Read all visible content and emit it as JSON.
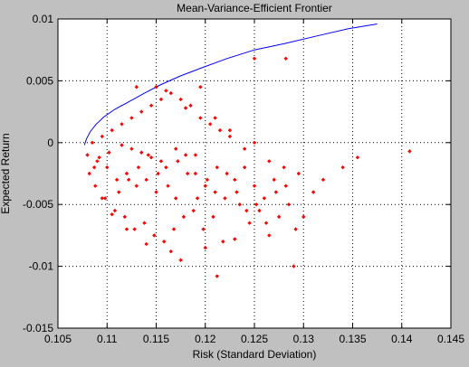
{
  "chart_data": {
    "type": "scatter",
    "title": "Mean-Variance-Efficient Frontier",
    "xlabel": "Risk (Standard Deviation)",
    "ylabel": "Expected Return",
    "xlim": [
      0.105,
      0.145
    ],
    "ylim": [
      -0.015,
      0.01
    ],
    "x_ticks": [
      "0.105",
      "0.11",
      "0.115",
      "0.12",
      "0.125",
      "0.13",
      "0.135",
      "0.14",
      "0.145"
    ],
    "x_tick_values": [
      0.105,
      0.11,
      0.115,
      0.12,
      0.125,
      0.13,
      0.135,
      0.14,
      0.145
    ],
    "y_ticks": [
      "-0.015",
      "-0.01",
      "-0.005",
      "0",
      "0.005",
      "0.01"
    ],
    "y_tick_values": [
      -0.015,
      -0.01,
      -0.005,
      0,
      0.005,
      0.01
    ],
    "grid": true,
    "colors": {
      "frontier": "#0000ff",
      "portfolios": "#ff0000",
      "background": "#c0c0c0",
      "axes_bg": "#ffffff"
    },
    "series": [
      {
        "type": "line",
        "color": "#0000ff",
        "x": [
          0.1077,
          0.1079,
          0.1083,
          0.1089,
          0.1097,
          0.1108,
          0.1122,
          0.1138,
          0.1155,
          0.1175,
          0.1198,
          0.1222,
          0.125,
          0.128,
          0.1312,
          0.1345,
          0.1375
        ],
        "y": [
          -0.0002,
          0.0003,
          0.0009,
          0.0015,
          0.0021,
          0.0027,
          0.0033,
          0.004,
          0.0047,
          0.0054,
          0.0061,
          0.0068,
          0.0075,
          0.008,
          0.0086,
          0.0092,
          0.0096
        ]
      },
      {
        "type": "scatter",
        "color": "#ff0000",
        "x": [
          0.108,
          0.1085,
          0.1082,
          0.109,
          0.1095,
          0.1088,
          0.11,
          0.1105,
          0.1098,
          0.111,
          0.1115,
          0.1108,
          0.112,
          0.1125,
          0.1118,
          0.113,
          0.1135,
          0.1128,
          0.114,
          0.1145,
          0.1138,
          0.115,
          0.1155,
          0.1148,
          0.116,
          0.1165,
          0.1158,
          0.117,
          0.1175,
          0.1168,
          0.118,
          0.1185,
          0.1178,
          0.119,
          0.1195,
          0.1188,
          0.12,
          0.1205,
          0.1198,
          0.121,
          0.1215,
          0.1208,
          0.122,
          0.1225,
          0.1218,
          0.123,
          0.1235,
          0.124,
          0.1245,
          0.125,
          0.1255,
          0.126,
          0.1265,
          0.127,
          0.1275,
          0.128,
          0.1285,
          0.129,
          0.1295,
          0.13,
          0.131,
          0.132,
          0.134,
          0.1355,
          0.1408,
          0.125,
          0.1282,
          0.1212,
          0.1175,
          0.1165,
          0.114,
          0.112,
          0.1105,
          0.1095,
          0.113,
          0.115,
          0.116,
          0.118,
          0.1195,
          0.121,
          0.1225,
          0.124,
          0.125,
          0.1265,
          0.123,
          0.12,
          0.119,
          0.117,
          0.1155,
          0.1145,
          0.1135,
          0.1125,
          0.1115,
          0.1102,
          0.1092,
          0.1087,
          0.1112,
          0.1122,
          0.1132,
          0.1142,
          0.1152,
          0.1162,
          0.1172,
          0.1182,
          0.1192,
          0.1202,
          0.1212,
          0.1222,
          0.1232,
          0.1242,
          0.1252,
          0.1262,
          0.1272,
          0.1282,
          0.1292
        ],
        "y": [
          -0.001,
          0.0,
          -0.0025,
          -0.0015,
          0.0005,
          -0.0035,
          -0.002,
          0.001,
          -0.0045,
          -0.003,
          0.0015,
          -0.0055,
          -0.0025,
          0.002,
          -0.006,
          -0.0035,
          0.0025,
          -0.007,
          -0.003,
          0.003,
          -0.0065,
          -0.004,
          0.0035,
          -0.0075,
          -0.002,
          0.004,
          -0.008,
          -0.0045,
          0.0035,
          -0.007,
          -0.001,
          0.003,
          -0.006,
          -0.0025,
          0.002,
          -0.0055,
          -0.0035,
          0.0015,
          -0.007,
          -0.004,
          0.001,
          -0.006,
          -0.0045,
          0.0005,
          -0.008,
          -0.003,
          -0.005,
          -0.002,
          -0.0065,
          -0.0035,
          -0.0055,
          -0.0045,
          -0.0075,
          -0.003,
          -0.006,
          -0.002,
          -0.005,
          -0.01,
          -0.0025,
          -0.006,
          -0.004,
          -0.003,
          -0.002,
          -0.0012,
          -0.0007,
          0.0068,
          0.0068,
          -0.0108,
          -0.0095,
          -0.0088,
          -0.0082,
          -0.007,
          -0.0058,
          -0.0045,
          0.0045,
          0.0045,
          0.0042,
          0.0028,
          0.0045,
          0.002,
          0.001,
          -0.0005,
          0.0,
          -0.0015,
          -0.0078,
          -0.0085,
          -0.001,
          -0.0005,
          -0.0015,
          -0.0012,
          -0.0008,
          -0.0005,
          -0.0002,
          -0.0008,
          -0.0012,
          -0.002,
          -0.004,
          -0.003,
          -0.002,
          -0.001,
          -0.0025,
          -0.0035,
          -0.0015,
          -0.0025,
          -0.0045,
          -0.003,
          -0.002,
          -0.0025,
          -0.004,
          -0.0055,
          -0.005,
          -0.0065,
          -0.004,
          -0.0035,
          -0.007
        ]
      }
    ]
  }
}
